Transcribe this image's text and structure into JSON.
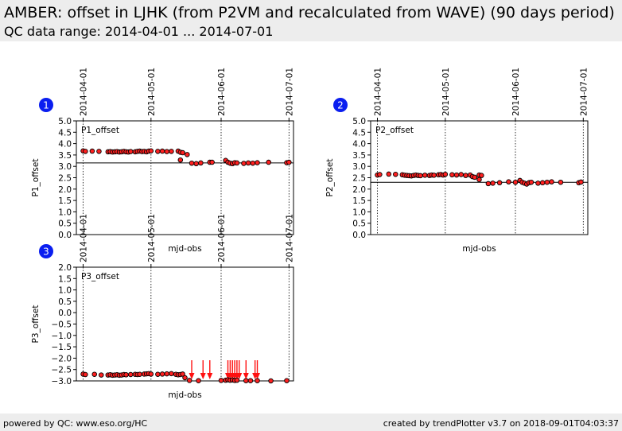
{
  "header": {
    "title": "AMBER: offset in LJHK (from P2VM and recalculated from WAVE) (90 days period)",
    "subtitle": "QC data range: 2014-04-01 ... 2014-07-01"
  },
  "footer": {
    "left": "powered by QC: www.eso.org/HC",
    "right": "created by trendPlotter v3.7 on 2018-09-01T04:03:37"
  },
  "colors": {
    "point_fill": "#ff2020",
    "point_edge": "#000000",
    "reference_line": "#000000",
    "badge": "#0a1ef0"
  },
  "chart_data": [
    {
      "type": "scatter",
      "badge": "1",
      "panel_label": "P1_offset",
      "ylabel": "P1_offset",
      "xlabel": "mjd-obs",
      "ylim": [
        0.0,
        5.0
      ],
      "yticks": [
        "0.0",
        "0.5",
        "1.0",
        "1.5",
        "2.0",
        "2.5",
        "3.0",
        "3.5",
        "4.0",
        "4.5",
        "5.0"
      ],
      "date_ticks": [
        "2014-04-01",
        "2014-05-01",
        "2014-06-01",
        "2014-07-01"
      ],
      "reference_line": 3.15,
      "points": [
        [
          "2014-04-01",
          3.68
        ],
        [
          "2014-04-02",
          3.66
        ],
        [
          "2014-04-05",
          3.67
        ],
        [
          "2014-04-08",
          3.66
        ],
        [
          "2014-04-12",
          3.64
        ],
        [
          "2014-04-13",
          3.65
        ],
        [
          "2014-04-14",
          3.63
        ],
        [
          "2014-04-15",
          3.64
        ],
        [
          "2014-04-16",
          3.65
        ],
        [
          "2014-04-17",
          3.63
        ],
        [
          "2014-04-18",
          3.64
        ],
        [
          "2014-04-19",
          3.66
        ],
        [
          "2014-04-20",
          3.64
        ],
        [
          "2014-04-21",
          3.63
        ],
        [
          "2014-04-22",
          3.65
        ],
        [
          "2014-04-24",
          3.64
        ],
        [
          "2014-04-25",
          3.66
        ],
        [
          "2014-04-26",
          3.67
        ],
        [
          "2014-04-27",
          3.65
        ],
        [
          "2014-04-28",
          3.66
        ],
        [
          "2014-04-29",
          3.64
        ],
        [
          "2014-04-30",
          3.67
        ],
        [
          "2014-05-01",
          3.68
        ],
        [
          "2014-05-04",
          3.66
        ],
        [
          "2014-05-06",
          3.67
        ],
        [
          "2014-05-08",
          3.65
        ],
        [
          "2014-05-10",
          3.66
        ],
        [
          "2014-05-13",
          3.67
        ],
        [
          "2014-05-14",
          3.62
        ],
        [
          "2014-05-15",
          3.6
        ],
        [
          "2014-05-17",
          3.52
        ],
        [
          "2014-05-14",
          3.28
        ],
        [
          "2014-05-19",
          3.14
        ],
        [
          "2014-05-21",
          3.12
        ],
        [
          "2014-05-23",
          3.15
        ],
        [
          "2014-05-27",
          3.18
        ],
        [
          "2014-05-28",
          3.18
        ],
        [
          "2014-06-03",
          3.26
        ],
        [
          "2014-06-04",
          3.18
        ],
        [
          "2014-06-05",
          3.14
        ],
        [
          "2014-06-06",
          3.12
        ],
        [
          "2014-06-07",
          3.16
        ],
        [
          "2014-06-08",
          3.15
        ],
        [
          "2014-06-11",
          3.13
        ],
        [
          "2014-06-13",
          3.15
        ],
        [
          "2014-06-15",
          3.14
        ],
        [
          "2014-06-17",
          3.16
        ],
        [
          "2014-06-22",
          3.18
        ],
        [
          "2014-06-30",
          3.16
        ],
        [
          "2014-07-01",
          3.18
        ]
      ]
    },
    {
      "type": "scatter",
      "badge": "2",
      "panel_label": "P2_offset",
      "ylabel": "P2_offset",
      "xlabel": "mjd-obs",
      "ylim": [
        0.0,
        5.0
      ],
      "yticks": [
        "0.0",
        "0.5",
        "1.0",
        "1.5",
        "2.0",
        "2.5",
        "3.0",
        "3.5",
        "4.0",
        "4.5",
        "5.0"
      ],
      "date_ticks": [
        "2014-04-01",
        "2014-05-01",
        "2014-06-01",
        "2014-07-01"
      ],
      "reference_line": 2.3,
      "points": [
        [
          "2014-04-01",
          2.62
        ],
        [
          "2014-04-02",
          2.64
        ],
        [
          "2014-04-06",
          2.66
        ],
        [
          "2014-04-09",
          2.65
        ],
        [
          "2014-04-12",
          2.63
        ],
        [
          "2014-04-13",
          2.61
        ],
        [
          "2014-04-14",
          2.6
        ],
        [
          "2014-04-15",
          2.59
        ],
        [
          "2014-04-16",
          2.58
        ],
        [
          "2014-04-17",
          2.6
        ],
        [
          "2014-04-18",
          2.62
        ],
        [
          "2014-04-19",
          2.6
        ],
        [
          "2014-04-20",
          2.59
        ],
        [
          "2014-04-22",
          2.61
        ],
        [
          "2014-04-24",
          2.6
        ],
        [
          "2014-04-25",
          2.62
        ],
        [
          "2014-04-26",
          2.61
        ],
        [
          "2014-04-28",
          2.63
        ],
        [
          "2014-04-29",
          2.64
        ],
        [
          "2014-04-30",
          2.62
        ],
        [
          "2014-05-01",
          2.65
        ],
        [
          "2014-05-04",
          2.63
        ],
        [
          "2014-05-06",
          2.62
        ],
        [
          "2014-05-08",
          2.64
        ],
        [
          "2014-05-10",
          2.6
        ],
        [
          "2014-05-12",
          2.62
        ],
        [
          "2014-05-13",
          2.55
        ],
        [
          "2014-05-14",
          2.52
        ],
        [
          "2014-05-16",
          2.62
        ],
        [
          "2014-05-17",
          2.6
        ],
        [
          "2014-05-16",
          2.42
        ],
        [
          "2014-05-20",
          2.24
        ],
        [
          "2014-05-22",
          2.26
        ],
        [
          "2014-05-25",
          2.28
        ],
        [
          "2014-05-29",
          2.32
        ],
        [
          "2014-06-01",
          2.3
        ],
        [
          "2014-06-03",
          2.38
        ],
        [
          "2014-06-04",
          2.3
        ],
        [
          "2014-06-05",
          2.26
        ],
        [
          "2014-06-06",
          2.22
        ],
        [
          "2014-06-07",
          2.28
        ],
        [
          "2014-06-08",
          2.3
        ],
        [
          "2014-06-11",
          2.26
        ],
        [
          "2014-06-13",
          2.28
        ],
        [
          "2014-06-15",
          2.3
        ],
        [
          "2014-06-17",
          2.32
        ],
        [
          "2014-06-21",
          2.3
        ],
        [
          "2014-06-29",
          2.28
        ],
        [
          "2014-06-30",
          2.31
        ]
      ]
    },
    {
      "type": "scatter",
      "badge": "3",
      "panel_label": "P3_offset",
      "ylabel": "P3_offset",
      "xlabel": "mjd-obs",
      "ylim": [
        -3.0,
        2.0
      ],
      "yticks": [
        "−3.0",
        "−2.5",
        "−2.0",
        "−1.5",
        "−1.0",
        "−0.5",
        "0.0",
        "0.5",
        "1.0",
        "1.5",
        "2.0"
      ],
      "date_ticks": [
        "2014-04-01",
        "2014-05-01",
        "2014-06-01",
        "2014-07-01"
      ],
      "points": [
        [
          "2014-04-01",
          -2.7
        ],
        [
          "2014-04-02",
          -2.72
        ],
        [
          "2014-04-06",
          -2.71
        ],
        [
          "2014-04-09",
          -2.74
        ],
        [
          "2014-04-12",
          -2.74
        ],
        [
          "2014-04-13",
          -2.73
        ],
        [
          "2014-04-14",
          -2.75
        ],
        [
          "2014-04-15",
          -2.74
        ],
        [
          "2014-04-16",
          -2.73
        ],
        [
          "2014-04-17",
          -2.75
        ],
        [
          "2014-04-18",
          -2.74
        ],
        [
          "2014-04-19",
          -2.72
        ],
        [
          "2014-04-20",
          -2.73
        ],
        [
          "2014-04-22",
          -2.72
        ],
        [
          "2014-04-24",
          -2.71
        ],
        [
          "2014-04-25",
          -2.72
        ],
        [
          "2014-04-26",
          -2.71
        ],
        [
          "2014-04-28",
          -2.7
        ],
        [
          "2014-04-29",
          -2.69
        ],
        [
          "2014-04-30",
          -2.68
        ],
        [
          "2014-05-01",
          -2.7
        ],
        [
          "2014-05-04",
          -2.71
        ],
        [
          "2014-05-06",
          -2.7
        ],
        [
          "2014-05-08",
          -2.69
        ],
        [
          "2014-05-10",
          -2.68
        ],
        [
          "2014-05-12",
          -2.71
        ],
        [
          "2014-05-13",
          -2.73
        ],
        [
          "2014-05-14",
          -2.72
        ],
        [
          "2014-05-15",
          -2.7
        ],
        [
          "2014-05-16",
          -2.86
        ],
        [
          "2014-05-18",
          -2.98
        ],
        [
          "2014-05-22",
          -2.99
        ],
        [
          "2014-06-01",
          -2.98
        ],
        [
          "2014-06-03",
          -2.97
        ],
        [
          "2014-06-04",
          -2.95
        ],
        [
          "2014-06-05",
          -2.97
        ],
        [
          "2014-06-06",
          -2.96
        ],
        [
          "2014-06-07",
          -2.98
        ],
        [
          "2014-06-08",
          -2.97
        ],
        [
          "2014-06-12",
          -2.99
        ],
        [
          "2014-06-14",
          -2.99
        ],
        [
          "2014-06-17",
          -2.99
        ],
        [
          "2014-06-23",
          -3.0
        ],
        [
          "2014-06-30",
          -2.99
        ]
      ],
      "clipped_below": [
        "2014-05-19",
        "2014-05-24",
        "2014-05-27",
        "2014-06-04",
        "2014-06-05",
        "2014-06-06",
        "2014-06-07",
        "2014-06-08",
        "2014-06-09",
        "2014-06-12",
        "2014-06-16",
        "2014-06-17"
      ]
    }
  ]
}
